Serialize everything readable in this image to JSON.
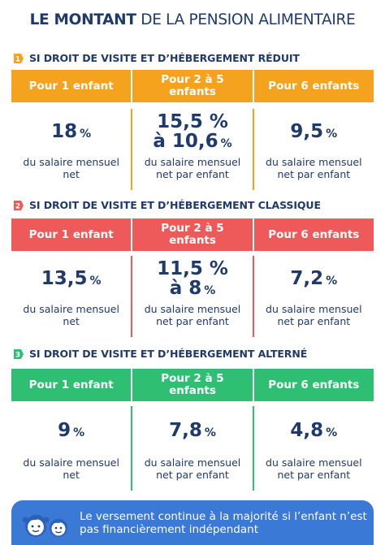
{
  "title": {
    "bold": "LE MONTANT",
    "rest": "DE LA PENSION ALIMENTAIRE"
  },
  "colors": {
    "navy": "#1f3a6b",
    "orange": "#f5a21e",
    "red": "#ee5a5a",
    "green": "#2fbf73",
    "blue": "#3b79d6"
  },
  "sections": [
    {
      "icon": "number-1-badge-icon",
      "icon_num": "1",
      "heading": "SI DROIT DE VISITE ET D’HÉBERGEMENT RÉDUIT",
      "headers": [
        "Pour 1 enfant",
        "Pour 2 à 5 enfants",
        "Pour 6 enfants"
      ],
      "values": [
        {
          "lines": [
            "18"
          ],
          "pct_on_last": true
        },
        {
          "lines": [
            "15,5 %",
            "à 10,6"
          ],
          "pct_on_last": true
        },
        {
          "lines": [
            "9,5"
          ],
          "pct_on_last": true
        }
      ],
      "pct": "%",
      "descs": [
        "du salaire mensuel net",
        "du salaire mensuel net par enfant",
        "du salaire mensuel net par enfant"
      ]
    },
    {
      "icon": "number-2-badge-icon",
      "icon_num": "2",
      "heading": "SI DROIT DE VISITE ET D’HÉBERGEMENT CLASSIQUE",
      "headers": [
        "Pour 1 enfant",
        "Pour 2 à 5 enfants",
        "Pour 6 enfants"
      ],
      "values": [
        {
          "lines": [
            "13,5"
          ],
          "pct_on_last": true
        },
        {
          "lines": [
            "11,5 %",
            "à 8"
          ],
          "pct_on_last": true
        },
        {
          "lines": [
            "7,2"
          ],
          "pct_on_last": true
        }
      ],
      "pct": "%",
      "descs": [
        "du salaire mensuel net",
        "du salaire mensuel net par enfant",
        "du salaire mensuel net par enfant"
      ]
    },
    {
      "icon": "number-3-badge-icon",
      "icon_num": "3",
      "heading": "SI DROIT DE VISITE ET D’HÉBERGEMENT ALTERNÉ",
      "headers": [
        "Pour 1 enfant",
        "Pour 2 à 5 enfants",
        "Pour 6 enfants"
      ],
      "values": [
        {
          "lines": [
            "9"
          ],
          "pct_on_last": true
        },
        {
          "lines": [
            "7,8"
          ],
          "pct_on_last": true
        },
        {
          "lines": [
            "4,8"
          ],
          "pct_on_last": true
        }
      ],
      "pct": "%",
      "descs": [
        "du salaire mensuel net",
        "du salaire mensuel net par enfant",
        "du salaire mensuel net par enfant"
      ]
    }
  ],
  "footer": {
    "icon": "children-faces-icon",
    "text": "Le versement continue à la majorité si l’enfant n’est pas financièrement indépendant"
  }
}
